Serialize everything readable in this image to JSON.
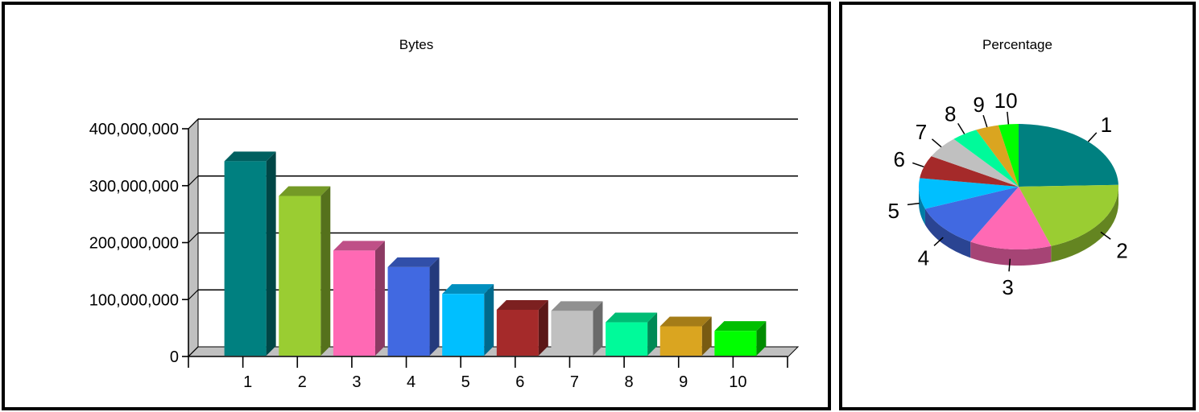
{
  "chart_data": [
    {
      "type": "bar",
      "title": "Bytes",
      "categories": [
        "1",
        "2",
        "3",
        "4",
        "5",
        "6",
        "7",
        "8",
        "9",
        "10"
      ],
      "values": [
        343000000,
        282000000,
        186000000,
        157000000,
        110000000,
        82000000,
        80000000,
        60000000,
        53000000,
        45000000
      ],
      "colors": [
        "#008080",
        "#9acd32",
        "#ff69b4",
        "#4169e1",
        "#00bfff",
        "#a52a2a",
        "#c0c0c0",
        "#00fa9a",
        "#daa520",
        "#00ff00"
      ],
      "ylim": [
        0,
        400000000
      ],
      "yticks": [
        "0",
        "100,000,000",
        "200,000,000",
        "300,000,000",
        "400,000,000"
      ],
      "grid": true,
      "style": "3d"
    },
    {
      "type": "pie",
      "title": "Percentage",
      "labels": [
        "1",
        "2",
        "3",
        "4",
        "5",
        "6",
        "7",
        "8",
        "9",
        "10"
      ],
      "values": [
        24.2,
        19.9,
        13.1,
        11.1,
        7.8,
        5.8,
        5.6,
        4.2,
        3.7,
        3.2
      ],
      "colors": [
        "#008080",
        "#9acd32",
        "#ff69b4",
        "#4169e1",
        "#00bfff",
        "#a52a2a",
        "#c0c0c0",
        "#00fa9a",
        "#daa520",
        "#00ff00"
      ],
      "style": "3d"
    }
  ]
}
